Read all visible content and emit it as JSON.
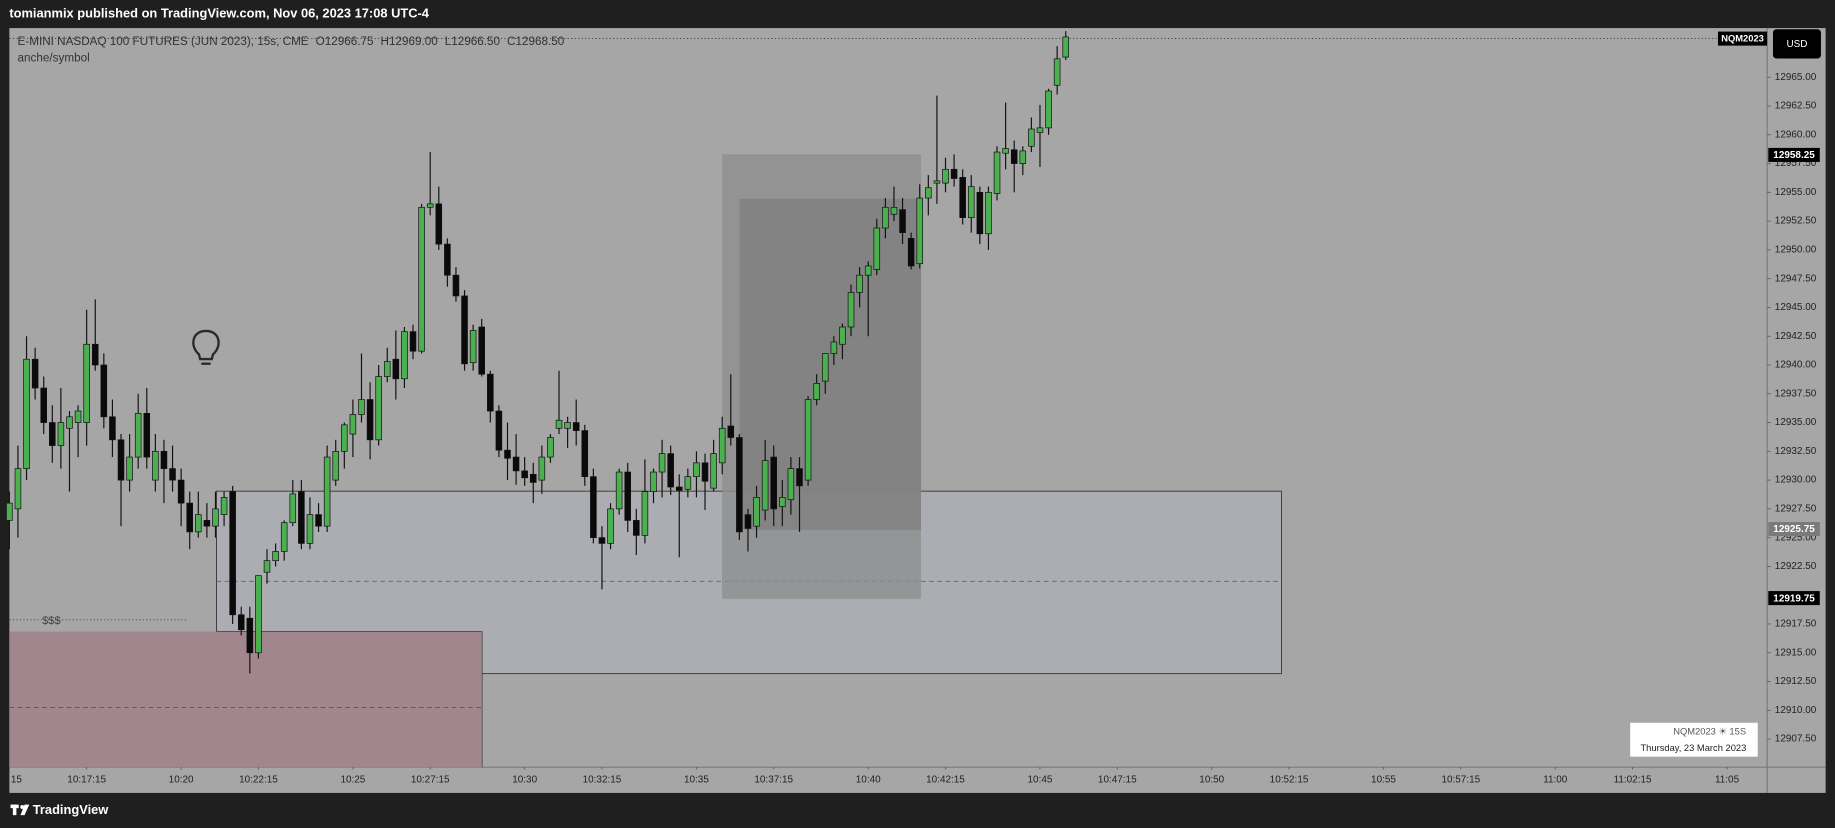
{
  "header": {
    "publisher": "tomianmix published on TradingView.com, Nov 06, 2023 17:08 UTC-4"
  },
  "chart_data": {
    "type": "candlestick",
    "symbol_title": "E-MINI NASDAQ 100 FUTURES (JUN 2023), 15s, CME",
    "legend_values": [
      "O12966.75",
      "H12969.00",
      "L12966.50",
      "C12968.50"
    ],
    "indicator_label": "anche/symbol",
    "annotation": "$$$",
    "symbol_tag": "NQM2023",
    "currency": "USD",
    "price_labels": [
      12958.25,
      12925.75,
      12919.75
    ],
    "up_color": "#4caf50",
    "down_color": "#0a0a0a",
    "grid": false,
    "x": [
      36900,
      36915,
      36930,
      36945,
      36960,
      36975,
      36990,
      37005,
      37020,
      37035,
      37050,
      37065,
      37080,
      37095,
      37110,
      37125,
      37140,
      37155,
      37170,
      37185,
      37200,
      37215,
      37230,
      37245,
      37260,
      37275,
      37290,
      37305,
      37320,
      37335,
      37350,
      37365,
      37380,
      37395,
      37410,
      37425,
      37440,
      37455,
      37470,
      37485,
      37500,
      37515,
      37530,
      37545,
      37560,
      37575,
      37590,
      37605,
      37620,
      37635,
      37650,
      37665,
      37680,
      37695,
      37710,
      37725,
      37740,
      37755,
      37770,
      37785,
      37800,
      37815,
      37830,
      37845,
      37860,
      37875,
      37890,
      37905,
      37920,
      37935,
      37950,
      37965,
      37980,
      37995,
      38010,
      38025,
      38040,
      38055,
      38070,
      38085,
      38100,
      38115,
      38130,
      38145,
      38160,
      38175,
      38190,
      38205,
      38220,
      38235,
      38250,
      38265,
      38280,
      38295,
      38310,
      38325,
      38340,
      38355,
      38370,
      38385,
      38400,
      38415,
      38430,
      38445,
      38460,
      38475,
      38490,
      38505,
      38520,
      38535,
      38550,
      38565,
      38580,
      38595,
      38610,
      38625,
      38640,
      38655,
      38670,
      38685,
      38700,
      38715,
      38730,
      38745
    ],
    "open": [
      12926.5,
      12927.5,
      12931,
      12940.5,
      12938,
      12935,
      12933,
      12934.5,
      12935,
      12935,
      12941.8,
      12940,
      12935.5,
      12933.5,
      12930,
      12932,
      12935.8,
      12930,
      12932.5,
      12931,
      12930,
      12928,
      12925.5,
      12926.5,
      12926,
      12927,
      12929,
      12918.3,
      12918,
      12915,
      12922,
      12923,
      12923.8,
      12926.3,
      12929,
      12924.5,
      12927,
      12926,
      12930,
      12932.5,
      12934,
      12935.7,
      12937,
      12933.5,
      12939,
      12940.5,
      12938.8,
      12942.9,
      12941.2,
      12953.7,
      12954,
      12950.5,
      12947.8,
      12946,
      12940.2,
      12943.3,
      12939.2,
      12936,
      12932.6,
      12932,
      12930.8,
      12930.5,
      12930,
      12932,
      12934.5,
      12934.5,
      12935,
      12934.3,
      12930.3,
      12925,
      12924.5,
      12927.5,
      12930.7,
      12926.5,
      12925.2,
      12929,
      12930.7,
      12932.3,
      12929.4,
      12929.2,
      12930.3,
      12931.5,
      12929.3,
      12931.5,
      12934.7,
      12933.7,
      12927,
      12926,
      12927.4,
      12932,
      12927.7,
      12928.3,
      12931,
      12930,
      12937,
      12938.6,
      12941,
      12941.8,
      12943.3,
      12946.3,
      12947.8,
      12948.3,
      12951.9,
      12953.1,
      12953.5,
      12951,
      12948.8,
      12954.5,
      12955.8,
      12955.8,
      12957,
      12956.3,
      12952.8,
      12955,
      12951.4,
      12954.9,
      12958.4,
      12958.7,
      12957.5,
      12959,
      12960.2,
      12960.6,
      12964.3,
      12966.75
    ],
    "high": [
      12929,
      12933,
      12942.5,
      12941.5,
      12939,
      12936.5,
      12938,
      12936,
      12936.5,
      12944.8,
      12945.7,
      12941,
      12937,
      12934,
      12934,
      12937.5,
      12938,
      12934,
      12933.5,
      12933,
      12931,
      12929,
      12929,
      12928,
      12929,
      12929,
      12929.5,
      12919,
      12919,
      12921.5,
      12924,
      12924.5,
      12926.5,
      12930,
      12930,
      12928.5,
      12928,
      12933,
      12933.5,
      12935,
      12937,
      12941,
      12938.5,
      12940,
      12941.5,
      12943,
      12943.3,
      12943.5,
      12954,
      12958.5,
      12955.5,
      12951,
      12948.5,
      12946.5,
      12943.5,
      12944,
      12939.5,
      12936.5,
      12935,
      12934,
      12932,
      12931.5,
      12933,
      12934,
      12939.5,
      12935.5,
      12937,
      12934.8,
      12931,
      12926,
      12928,
      12931,
      12931.5,
      12927.5,
      12931.8,
      12931,
      12933.5,
      12933,
      12930.5,
      12931,
      12932.5,
      12932.3,
      12933.5,
      12935.5,
      12939.2,
      12934,
      12927.5,
      12929.5,
      12933.5,
      12933,
      12930,
      12932,
      12932,
      12937.3,
      12939.2,
      12941,
      12942.5,
      12943.6,
      12947,
      12948.5,
      12949,
      12952.7,
      12954.5,
      12955.5,
      12954.5,
      12951.5,
      12955.7,
      12956.5,
      12963.4,
      12958,
      12958.3,
      12957,
      12956.5,
      12955.5,
      12955.5,
      12959,
      12962.8,
      12959.5,
      12959,
      12961.5,
      12962.6,
      12964,
      12967.7,
      12969
    ],
    "low": [
      12924,
      12925,
      12930,
      12937,
      12934,
      12931.5,
      12931,
      12929,
      12932,
      12933,
      12939.5,
      12934.5,
      12932,
      12926,
      12929,
      12931,
      12931,
      12929,
      12928,
      12929,
      12926,
      12924,
      12925,
      12925,
      12925,
      12926,
      12917.5,
      12916.5,
      12913.2,
      12914.5,
      12921,
      12922.5,
      12923,
      12926,
      12924,
      12924,
      12925.5,
      12925.5,
      12929.5,
      12931,
      12932,
      12935,
      12931.8,
      12933,
      12938.5,
      12937,
      12938,
      12940.5,
      12941,
      12953,
      12950,
      12946.8,
      12945.5,
      12939.5,
      12939.5,
      12939,
      12935,
      12932,
      12930,
      12929.6,
      12929.5,
      12928,
      12928.8,
      12931.5,
      12934,
      12932.8,
      12933,
      12929.5,
      12924.5,
      12920.5,
      12924,
      12927,
      12925.5,
      12923.5,
      12924.5,
      12928,
      12928.5,
      12928.7,
      12923.3,
      12928.5,
      12928.5,
      12927.4,
      12929,
      12930.5,
      12933,
      12924.8,
      12923.8,
      12925,
      12926.5,
      12926,
      12926,
      12927,
      12925.5,
      12929.5,
      12936.5,
      12937.5,
      12940,
      12940.5,
      12942.5,
      12945,
      12942.5,
      12947.8,
      12951,
      12952.5,
      12950.5,
      12948.3,
      12948.4,
      12953,
      12954,
      12955,
      12955.5,
      12952.2,
      12951.5,
      12950.5,
      12950,
      12954.3,
      12957,
      12955,
      12956.5,
      12958.5,
      12957.2,
      12960,
      12963.5,
      12966.5
    ],
    "close": [
      12928,
      12931,
      12940.5,
      12938,
      12935,
      12933,
      12935,
      12935.5,
      12936,
      12941.8,
      12940,
      12935.5,
      12933.5,
      12930,
      12932,
      12935.8,
      12932,
      12932.5,
      12931,
      12930,
      12928,
      12925.5,
      12927,
      12926,
      12927.5,
      12928.5,
      12918.3,
      12917,
      12915,
      12921.7,
      12923,
      12923.8,
      12926.3,
      12928.8,
      12924.5,
      12927,
      12926,
      12932,
      12932.5,
      12934.8,
      12935.7,
      12937,
      12933.5,
      12939,
      12940.3,
      12938.8,
      12942.9,
      12941.2,
      12953.7,
      12954,
      12950.5,
      12947.8,
      12946,
      12940.1,
      12943,
      12939.2,
      12936,
      12932.6,
      12931.9,
      12930.8,
      12930.2,
      12929.8,
      12932,
      12933.7,
      12935.2,
      12935,
      12934.3,
      12930.3,
      12925,
      12924.5,
      12927.5,
      12930.7,
      12926.5,
      12925.2,
      12929,
      12930.7,
      12932.3,
      12929.4,
      12929.1,
      12930.3,
      12931.5,
      12929.9,
      12932.3,
      12934.5,
      12933.7,
      12925.5,
      12925.8,
      12928.5,
      12931.7,
      12927.5,
      12928.5,
      12931,
      12929.5,
      12937,
      12938.4,
      12941,
      12942,
      12943.3,
      12946.3,
      12947.8,
      12948.6,
      12951.9,
      12953.7,
      12953.7,
      12951.5,
      12948.6,
      12954.5,
      12955.4,
      12956,
      12957,
      12956.2,
      12952.8,
      12955.5,
      12951.4,
      12955,
      12958.5,
      12958.8,
      12957.5,
      12958.6,
      12960.5,
      12960.6,
      12963.8,
      12966.6,
      12968.5
    ],
    "xlim": [
      36900,
      39970
    ],
    "ylim": [
      12905.06,
      12969.27
    ],
    "xticks": [
      {
        "value": 36900,
        "label": "15"
      },
      {
        "value": 37035,
        "label": "10:17:15"
      },
      {
        "value": 37200,
        "label": "10:20"
      },
      {
        "value": 37335,
        "label": "10:22:15"
      },
      {
        "value": 37500,
        "label": "10:25"
      },
      {
        "value": 37635,
        "label": "10:27:15"
      },
      {
        "value": 37800,
        "label": "10:30"
      },
      {
        "value": 37935,
        "label": "10:32:15"
      },
      {
        "value": 38100,
        "label": "10:35"
      },
      {
        "value": 38235,
        "label": "10:37:15"
      },
      {
        "value": 38400,
        "label": "10:40"
      },
      {
        "value": 38535,
        "label": "10:42:15"
      },
      {
        "value": 38700,
        "label": "10:45"
      },
      {
        "value": 38835,
        "label": "10:47:15"
      },
      {
        "value": 39000,
        "label": "10:50"
      },
      {
        "value": 39135,
        "label": "10:52:15"
      },
      {
        "value": 39300,
        "label": "10:55"
      },
      {
        "value": 39435,
        "label": "10:57:15"
      },
      {
        "value": 39600,
        "label": "11:00"
      },
      {
        "value": 39735,
        "label": "11:02:15"
      },
      {
        "value": 39900,
        "label": "11:05"
      }
    ],
    "yticks": [
      {
        "value": 12965,
        "label": "12965.00"
      },
      {
        "value": 12962.5,
        "label": "12962.50"
      },
      {
        "value": 12960,
        "label": "12960.00"
      },
      {
        "value": 12957.5,
        "label": "12957.50"
      },
      {
        "value": 12955,
        "label": "12955.00"
      },
      {
        "value": 12952.5,
        "label": "12952.50"
      },
      {
        "value": 12950,
        "label": "12950.00"
      },
      {
        "value": 12947.5,
        "label": "12947.50"
      },
      {
        "value": 12945,
        "label": "12945.00"
      },
      {
        "value": 12942.5,
        "label": "12942.50"
      },
      {
        "value": 12940,
        "label": "12940.00"
      },
      {
        "value": 12937.5,
        "label": "12937.50"
      },
      {
        "value": 12935,
        "label": "12935.00"
      },
      {
        "value": 12932.5,
        "label": "12932.50"
      },
      {
        "value": 12930,
        "label": "12930.00"
      },
      {
        "value": 12927.5,
        "label": "12927.50"
      },
      {
        "value": 12925,
        "label": "12925.00"
      },
      {
        "value": 12922.5,
        "label": "12922.50"
      },
      {
        "value": 12917.5,
        "label": "12917.50"
      },
      {
        "value": 12915,
        "label": "12915.00"
      },
      {
        "value": 12912.5,
        "label": "12912.50"
      },
      {
        "value": 12910,
        "label": "12910.00"
      },
      {
        "value": 12907.5,
        "label": "12907.50"
      }
    ],
    "info_box": {
      "line1": "NQM2023 ☀ 15S",
      "line2": "Thursday, 23 March 2023"
    }
  },
  "footer": {
    "brand": "TradingView"
  }
}
